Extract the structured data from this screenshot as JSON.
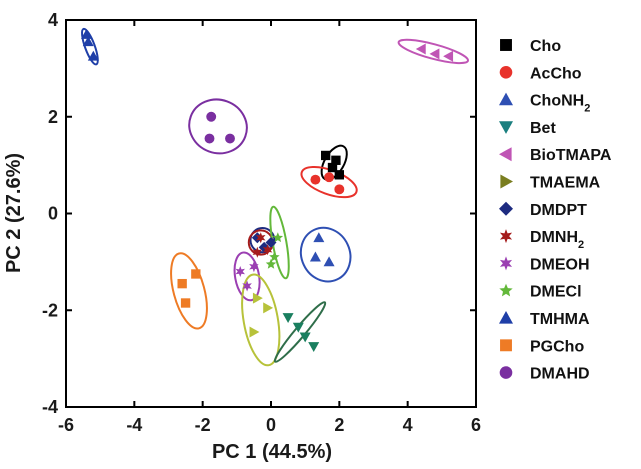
{
  "chart_data": {
    "type": "scatter",
    "xlabel": "PC 1 (44.5%)",
    "ylabel": "PC 2 (27.6%)",
    "xlim": [
      -6,
      6
    ],
    "ylim": [
      -4,
      4
    ],
    "xticks": [
      -6,
      -4,
      -2,
      0,
      2,
      4,
      6
    ],
    "yticks": [
      -4,
      -2,
      0,
      2,
      4
    ],
    "grid": false,
    "legend_position": "right",
    "series": [
      {
        "name": "Cho",
        "sub": "",
        "marker": "square",
        "color": "#000000",
        "points": [
          [
            1.6,
            1.2
          ],
          [
            1.9,
            1.1
          ],
          [
            1.8,
            0.95
          ],
          [
            2.0,
            0.8
          ]
        ],
        "ellipse": {
          "center": [
            1.85,
            1.05
          ],
          "rx": 0.55,
          "ry": 0.2,
          "angle_deg": 60,
          "color": "#000000"
        }
      },
      {
        "name": "AcCho",
        "sub": "",
        "marker": "circle",
        "color": "#e8322b",
        "points": [
          [
            1.3,
            0.7
          ],
          [
            1.7,
            0.75
          ],
          [
            2.0,
            0.5
          ]
        ],
        "ellipse": {
          "center": [
            1.7,
            0.65
          ],
          "rx": 0.85,
          "ry": 0.25,
          "angle_deg": -20,
          "color": "#e8322b"
        }
      },
      {
        "name": "ChoNH",
        "sub": "2",
        "marker": "triangle-up",
        "color": "#2e4fb3",
        "points": [
          [
            1.4,
            -0.5
          ],
          [
            1.3,
            -0.9
          ],
          [
            1.7,
            -1.0
          ]
        ],
        "ellipse": {
          "center": [
            1.6,
            -0.85
          ],
          "rx": 0.8,
          "ry": 0.5,
          "angle_deg": -65,
          "color": "#2e4fb3"
        }
      },
      {
        "name": "Bet",
        "sub": "",
        "marker": "triangle-down",
        "color": "#1a7f7f",
        "points": [],
        "ellipse": null
      },
      {
        "name": "BioTMAPA",
        "sub": "",
        "marker": "triangle-left",
        "color": "#c055b5",
        "points": [
          [
            4.4,
            3.4
          ],
          [
            4.8,
            3.3
          ],
          [
            5.2,
            3.25
          ]
        ],
        "ellipse": {
          "center": [
            4.75,
            3.35
          ],
          "rx": 1.05,
          "ry": 0.15,
          "angle_deg": -15,
          "color": "#c055b5"
        }
      },
      {
        "name": "TMAEMA",
        "sub": "",
        "marker": "triangle-right",
        "color": "#7a7e20",
        "points": [],
        "ellipse": null
      },
      {
        "name": "DMDPT",
        "sub": "",
        "marker": "diamond",
        "color": "#1d2b80",
        "points": [
          [
            -0.4,
            -0.5
          ],
          [
            -0.2,
            -0.7
          ],
          [
            0.0,
            -0.6
          ]
        ],
        "ellipse": {
          "center": [
            -0.25,
            -0.55
          ],
          "rx": 0.35,
          "ry": 0.25,
          "angle_deg": 0,
          "color": "#1d2b80"
        }
      },
      {
        "name": "DMNH",
        "sub": "2",
        "marker": "star6",
        "color": "#a51c1c",
        "points": [
          [
            -0.3,
            -0.5
          ],
          [
            -0.4,
            -0.8
          ],
          [
            -0.1,
            -0.75
          ]
        ],
        "ellipse": {
          "center": [
            -0.3,
            -0.6
          ],
          "rx": 0.35,
          "ry": 0.25,
          "angle_deg": 0,
          "color": "#a51c1c"
        }
      },
      {
        "name": "DMEOH",
        "sub": "",
        "marker": "star6",
        "color": "#9b3fb2",
        "points": [
          [
            -0.9,
            -1.2
          ],
          [
            -0.5,
            -1.1
          ],
          [
            -0.7,
            -1.5
          ]
        ],
        "ellipse": {
          "center": [
            -0.7,
            -1.3
          ],
          "rx": 0.35,
          "ry": 0.5,
          "angle_deg": 10,
          "color": "#9b3fb2"
        }
      },
      {
        "name": "DMECl",
        "sub": "",
        "marker": "star5",
        "color": "#63b83a",
        "points": [
          [
            0.2,
            -0.5
          ],
          [
            0.1,
            -0.9
          ],
          [
            0.0,
            -1.05
          ]
        ],
        "ellipse": {
          "center": [
            0.25,
            -0.6
          ],
          "rx": 0.2,
          "ry": 0.75,
          "angle_deg": 10,
          "color": "#63b83a"
        }
      },
      {
        "name": "TMHMA",
        "sub": "",
        "marker": "triangle-up",
        "color": "#1f3fa8",
        "points": [
          [
            -5.4,
            3.7
          ],
          [
            -5.35,
            3.55
          ],
          [
            -5.2,
            3.25
          ]
        ],
        "ellipse": {
          "center": [
            -5.3,
            3.45
          ],
          "rx": 0.55,
          "ry": 0.1,
          "angle_deg": -70,
          "color": "#1f3fa8"
        }
      },
      {
        "name": "PGCho",
        "sub": "",
        "marker": "square",
        "color": "#ee7b25",
        "points": [
          [
            -2.2,
            -1.25
          ],
          [
            -2.6,
            -1.45
          ],
          [
            -2.5,
            -1.85
          ]
        ],
        "ellipse": {
          "center": [
            -2.4,
            -1.6
          ],
          "rx": 0.45,
          "ry": 0.8,
          "angle_deg": 15,
          "color": "#ee7b25"
        }
      },
      {
        "name": "DMAHD",
        "sub": "",
        "marker": "circle",
        "color": "#7a2fa0",
        "points": [
          [
            -1.75,
            2.0
          ],
          [
            -1.8,
            1.55
          ],
          [
            -1.2,
            1.55
          ]
        ],
        "ellipse": {
          "center": [
            -1.55,
            1.8
          ],
          "rx": 0.85,
          "ry": 0.55,
          "angle_deg": -20,
          "color": "#7a2fa0"
        }
      },
      {
        "name": "TMAEMA-points",
        "sub": "",
        "marker": "triangle-right",
        "color": "#b7c23a",
        "points": [
          [
            -0.4,
            -1.75
          ],
          [
            -0.1,
            -1.95
          ],
          [
            -0.5,
            -2.45
          ]
        ],
        "ellipse": {
          "center": [
            -0.3,
            -2.2
          ],
          "rx": 0.5,
          "ry": 0.95,
          "angle_deg": 10,
          "color": "#b7c23a"
        },
        "hide_in_legend": true
      },
      {
        "name": "Bet-points",
        "sub": "",
        "marker": "triangle-down",
        "color": "#1a7f5f",
        "points": [
          [
            0.5,
            -2.15
          ],
          [
            0.8,
            -2.35
          ],
          [
            1.0,
            -2.55
          ],
          [
            1.25,
            -2.75
          ]
        ],
        "ellipse": {
          "center": [
            0.85,
            -2.45
          ],
          "rx": 0.15,
          "ry": 0.8,
          "angle_deg": -40,
          "color": "#2f6e4a"
        },
        "hide_in_legend": true
      }
    ]
  }
}
